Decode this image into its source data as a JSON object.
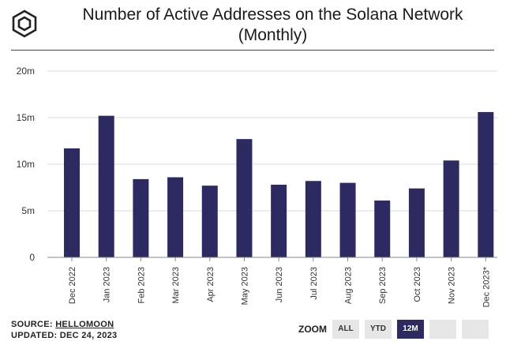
{
  "header": {
    "title_line1": "Number of Active Addresses on the Solana Network",
    "title_line2": "(Monthly)"
  },
  "logo": {
    "icon": "cube-logo-icon"
  },
  "footer": {
    "source_label": "SOURCE:",
    "source_name": "HELLOMOON",
    "updated": "UPDATED: DEC 24, 2023"
  },
  "zoom": {
    "label": "ZOOM",
    "buttons": [
      "ALL",
      "YTD",
      "12M",
      "",
      ""
    ],
    "active": "12M"
  },
  "colors": {
    "bar": "#2d2a62",
    "active_button": "#2d2a62",
    "divider": "#5a2a86"
  },
  "chart_data": {
    "type": "bar",
    "categories": [
      "Dec 2022",
      "Jan 2023",
      "Feb 2023",
      "Mar 2023",
      "Apr 2023",
      "May 2023",
      "Jun 2023",
      "Jul 2023",
      "Aug 2023",
      "Sep 2023",
      "Oct 2023",
      "Nov 2023",
      "Dec 2023*"
    ],
    "values": [
      11.7,
      15.2,
      8.4,
      8.6,
      7.7,
      12.7,
      7.8,
      8.2,
      8.0,
      6.1,
      7.4,
      10.4,
      15.6
    ],
    "y_ticks": [
      "0",
      "5m",
      "10m",
      "15m",
      "20m"
    ],
    "y_tick_values": [
      0,
      5,
      10,
      15,
      20
    ],
    "ylim": [
      0,
      20
    ],
    "unit": "millions",
    "grid": true
  }
}
